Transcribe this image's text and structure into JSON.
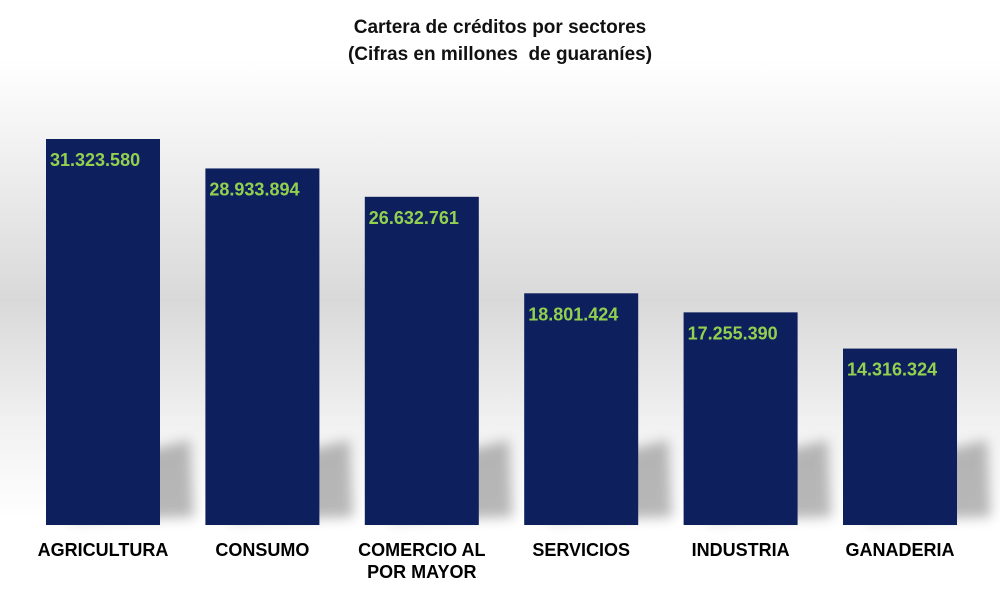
{
  "chart_data": {
    "type": "bar",
    "title": "Cartera de créditos por sectores",
    "subtitle": "(Cifras en millones  de guaraníes)",
    "categories": [
      "AGRICULTURA",
      "CONSUMO",
      "COMERCIO AL POR MAYOR",
      "SERVICIOS",
      "INDUSTRIA",
      "GANADERIA"
    ],
    "category_lines": [
      [
        "AGRICULTURA"
      ],
      [
        "CONSUMO"
      ],
      [
        "COMERCIO AL",
        "POR MAYOR"
      ],
      [
        "SERVICIOS"
      ],
      [
        "INDUSTRIA"
      ],
      [
        "GANADERIA"
      ]
    ],
    "values": [
      31323580,
      28933894,
      26632761,
      18801424,
      17255390,
      14316324
    ],
    "data_labels": [
      "31.323.580",
      "28.933.894",
      "26.632.761",
      "18.801.424",
      "17.255.390",
      "14.316.324"
    ],
    "ylim": [
      0,
      31323580
    ],
    "grid": false,
    "legend": "none",
    "colors": {
      "bar": "#0d1f5c",
      "data_label": "#92d050",
      "text": "#000000"
    }
  }
}
